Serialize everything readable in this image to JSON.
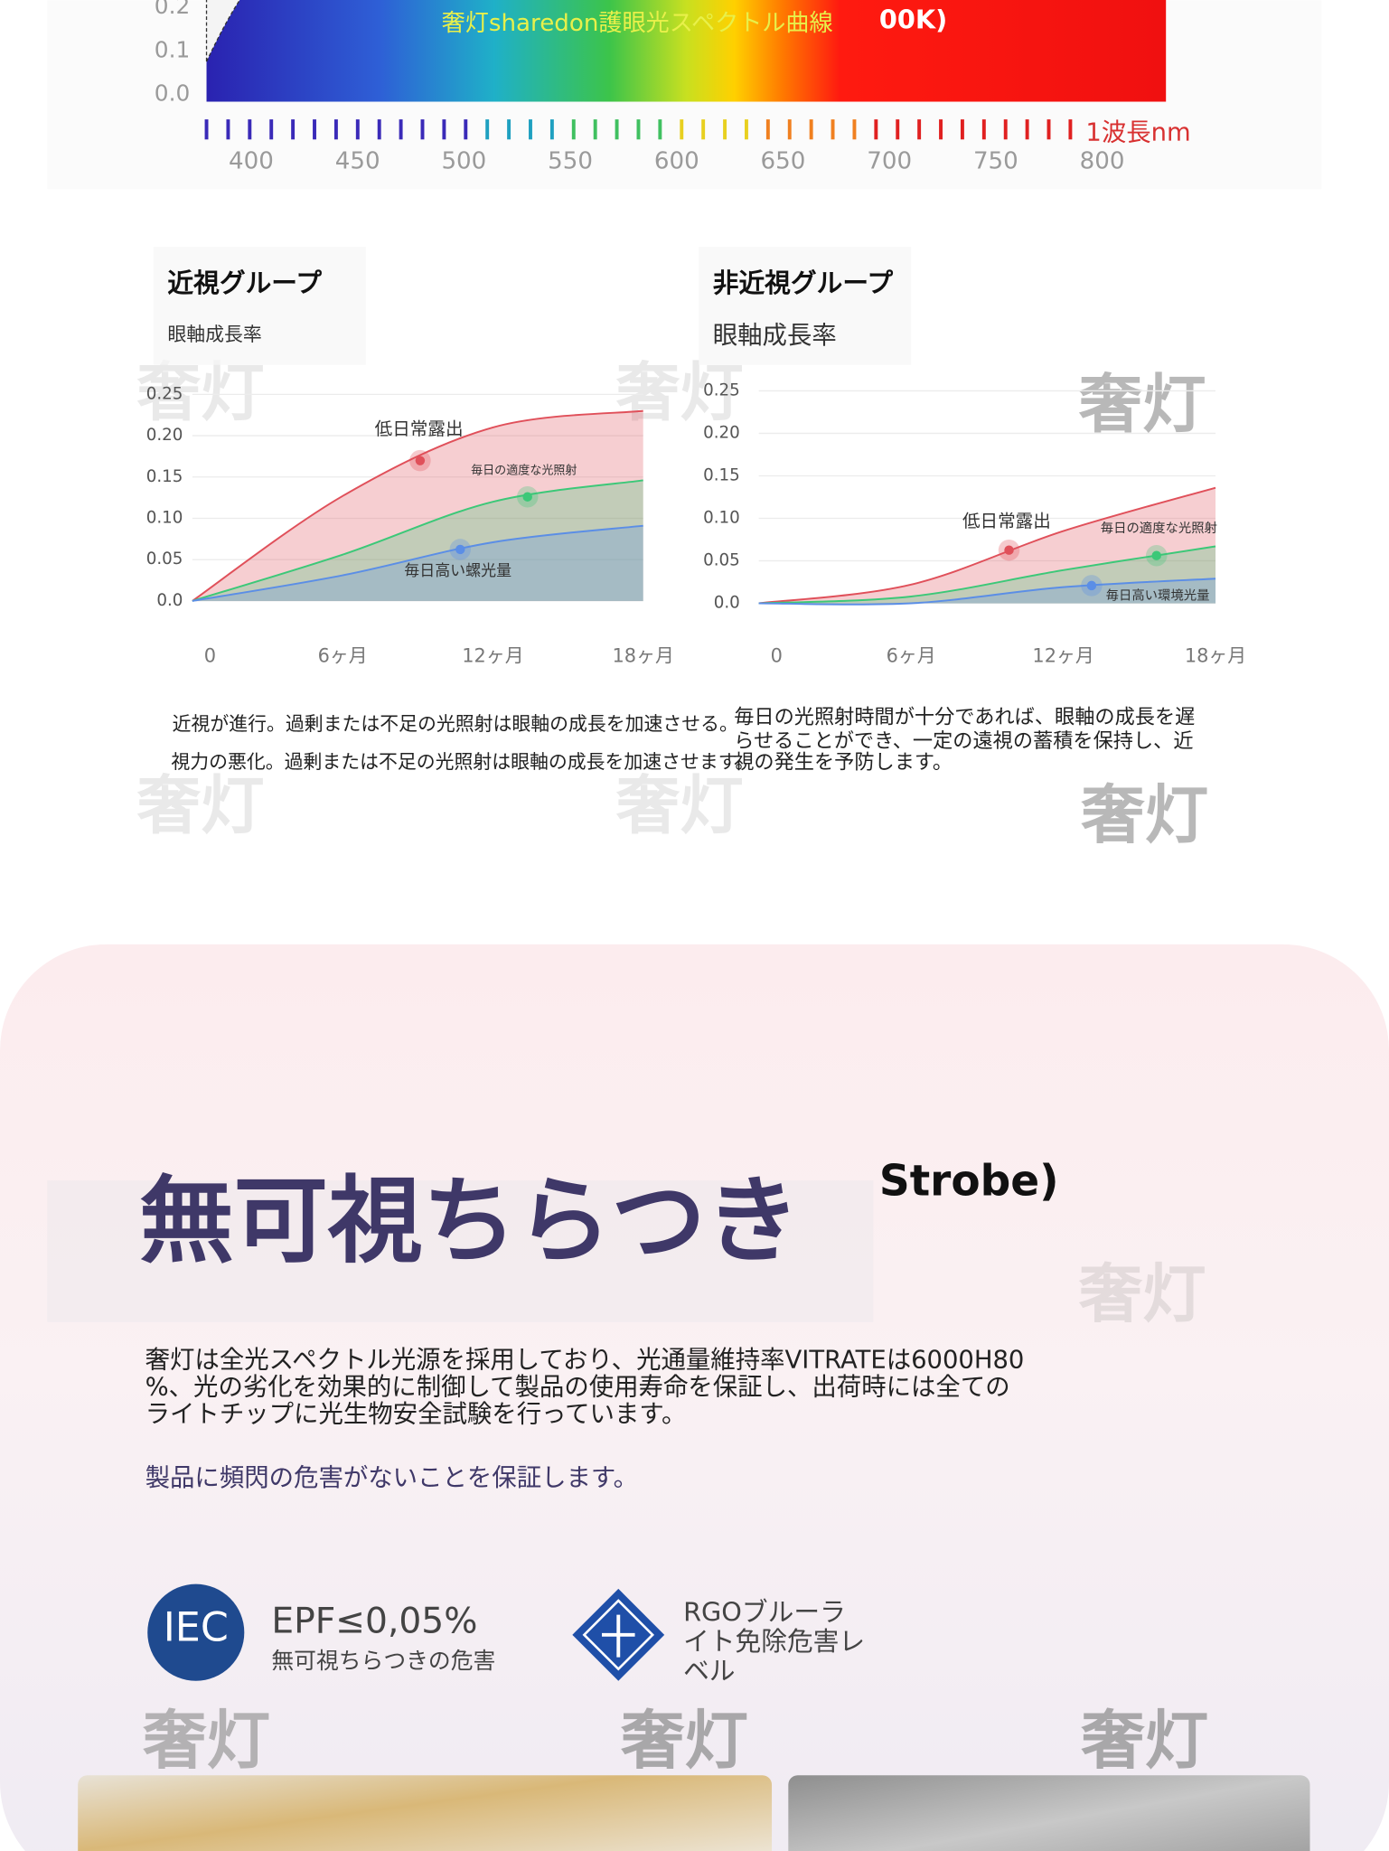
{
  "chart_data": [
    {
      "type": "spectrum",
      "title": "奢灯sharedon護眼光スペクトル曲線",
      "title_fragment": "00K)",
      "xlabel": "1波長nm",
      "xlim": [
        379,
        830
      ],
      "ylim": [
        0,
        0.2
      ],
      "xticks": [
        400,
        450,
        500,
        550,
        600,
        650,
        700,
        750,
        800
      ],
      "yticks": [
        {
          "value": 0,
          "label": "0.0"
        },
        0.1,
        0.2
      ]
    },
    {
      "type": "line",
      "title": "近視グループ",
      "subtitle": "眼軸成長率",
      "categories": [
        "0",
        "6ヶ月",
        "12ヶ月",
        "18ヶ月"
      ],
      "ylim": [
        0,
        0.25
      ],
      "yticks": [
        {
          "value": 0,
          "label": "0.0"
        },
        0.05,
        {
          "value": 0.1,
          "label": "0.10"
        },
        0.15,
        {
          "value": 0.2,
          "label": "0.20"
        },
        0.25
      ],
      "series": [
        {
          "name": "低日常露出",
          "color": "#e0505a",
          "values": [
            0,
            0.127,
            0.21,
            0.23
          ]
        },
        {
          "name": "毎日の適度な光照射",
          "color": "#3cc878",
          "values": [
            0,
            0.056,
            0.12,
            0.146
          ]
        },
        {
          "name": "毎日高い螺光量",
          "color": "#5b8ee6",
          "values": [
            0,
            0.031,
            0.071,
            0.091
          ]
        }
      ]
    },
    {
      "type": "line",
      "title": "非近視グループ",
      "subtitle": "眼軸成長率",
      "categories": [
        "0",
        "6ヶ月",
        "12ヶ月",
        "18ヶ月"
      ],
      "ylim": [
        0,
        0.25
      ],
      "yticks": [
        {
          "value": 0,
          "label": "0.0"
        },
        0.05,
        {
          "value": 0.1,
          "label": "0.10"
        },
        0.15,
        {
          "value": 0.2,
          "label": "0.20"
        },
        0.25
      ],
      "series": [
        {
          "name": "低日常露出",
          "color": "#e0505a",
          "values": [
            0,
            0.022,
            0.085,
            0.136
          ]
        },
        {
          "name": "毎日の適度な光照射",
          "color": "#3cc878",
          "values": [
            0,
            0.008,
            0.039,
            0.067
          ]
        },
        {
          "name": "毎日高い環境光量",
          "color": "#5b8ee6",
          "values": [
            0,
            0,
            0.019,
            0.029
          ]
        }
      ]
    }
  ],
  "caption": {
    "left_lines": [
      "近視が進行。過剰または不足の光照射は眼軸の成長を加速させる。",
      "視力の悪化。過剰または不足の光照射は眼軸の成長を加速させます。"
    ],
    "right_lines": [
      "毎日の光照射時間が十分であれば、眼軸の成長を遅",
      "らせることができ、一定の遠視の蓄積を保持し、近",
      "視の発生を予防します。"
    ]
  },
  "watermark": "奢灯",
  "flicker": {
    "title": "無可視ちらつき",
    "title_fragment": "Strobe)",
    "body_lines": [
      "奢灯は全光スペクトル光源を採用しており、光通量維持率VITRATEは6000H80",
      "%、光の劣化を効果的に制御して製品の使用寿命を保証し、出荷時には全ての",
      "ライトチップに光生物安全試験を行っています。"
    ],
    "assurance": "製品に頻閃の危害がないことを保証します。",
    "badges": [
      {
        "logo": "IEC",
        "value": "EPF≤0,05%",
        "label": "無可視ちらつきの危害"
      },
      {
        "label_lines": [
          "RGOブルーラ",
          "イト免除危害レ",
          "ベル"
        ]
      }
    ]
  }
}
